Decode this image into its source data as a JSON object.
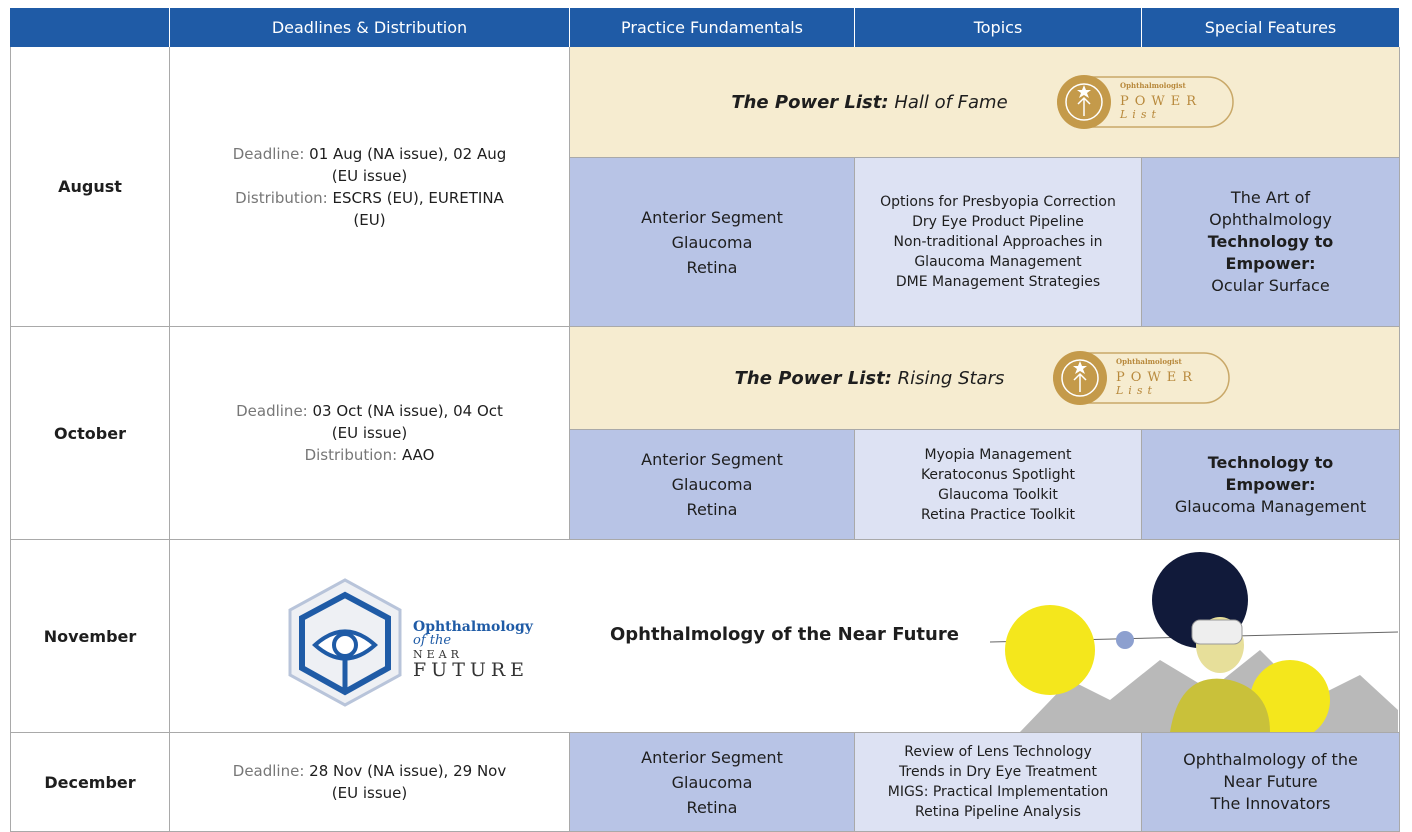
{
  "header": {
    "columns": [
      "Deadlines & Distribution",
      "Practice Fundamentals",
      "Topics",
      "Special Features"
    ]
  },
  "rows": [
    {
      "month": "August",
      "deadline": {
        "label": "Deadline:",
        "value": "01 Aug (NA issue), 02 Aug (EU issue)"
      },
      "distribution": {
        "label": "Distribution:",
        "value": "ESCRS (EU), EURETINA (EU)"
      },
      "feature": {
        "lead": "The Power List:",
        "title": "Hall of Fame",
        "badge": [
          "Ophthalmologist",
          "POWER",
          "List"
        ]
      },
      "fundamentals": [
        "Anterior Segment",
        "Glaucoma",
        "Retina"
      ],
      "topics": [
        "Options for Presbyopia Correction",
        "Dry Eye Product Pipeline",
        "Non-traditional Approaches in Glaucoma Management",
        "DME Management Strategies"
      ],
      "special": [
        {
          "text": "The Art of Ophthalmology"
        },
        {
          "text": "Technology to Empower:",
          "bold": true
        },
        {
          "text": "Ocular Surface"
        }
      ]
    },
    {
      "month": "October",
      "deadline": {
        "label": "Deadline:",
        "value": "03 Oct (NA issue), 04 Oct (EU issue)"
      },
      "distribution": {
        "label": "Distribution:",
        "value": "AAO"
      },
      "feature": {
        "lead": "The Power List:",
        "title": "Rising Stars",
        "badge": [
          "Ophthalmologist",
          "POWER",
          "List"
        ]
      },
      "fundamentals": [
        "Anterior Segment",
        "Glaucoma",
        "Retina"
      ],
      "topics": [
        "Myopia Management",
        "Keratoconus Spotlight",
        "Glaucoma Toolkit",
        "Retina Practice Toolkit"
      ],
      "special": [
        {
          "text": "Technology to Empower:",
          "bold": true
        },
        {
          "text": "Glaucoma Management"
        }
      ]
    },
    {
      "month": "November",
      "future": {
        "title": "Ophthalmology of the Near Future",
        "logo": [
          "Ophthalmology",
          "of the",
          "NEAR",
          "FUTURE"
        ]
      }
    },
    {
      "month": "December",
      "deadline": {
        "label": "Deadline:",
        "value": "28 Nov (NA issue), 29 Nov (EU issue)"
      },
      "fundamentals": [
        "Anterior Segment",
        "Glaucoma",
        "Retina"
      ],
      "topics": [
        "Review of Lens Technology",
        "Trends in Dry Eye Treatment",
        "MIGS: Practical Implementation",
        "Retina Pipeline Analysis"
      ],
      "special": [
        {
          "text": "Ophthalmology of the Near Future"
        },
        {
          "text": "The Innovators"
        }
      ]
    }
  ]
}
